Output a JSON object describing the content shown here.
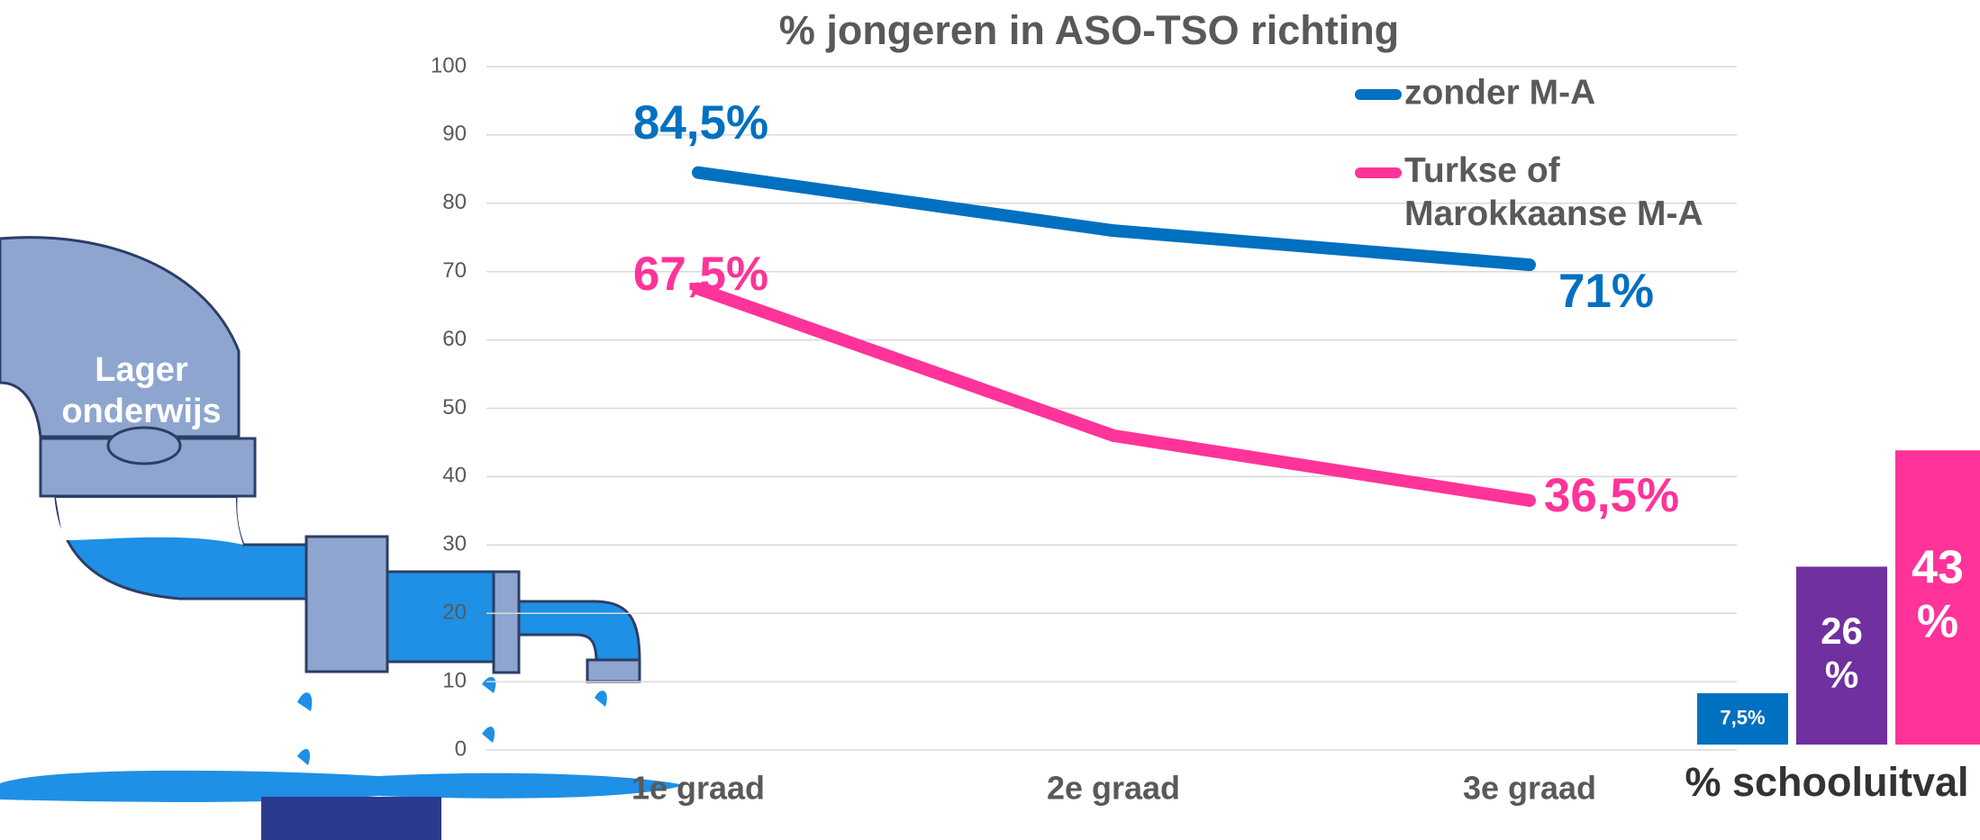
{
  "illustration_label": "Lager onderwijs",
  "chart_data": [
    {
      "type": "line",
      "title": "% jongeren in ASO-TSO richting",
      "categories": [
        "1e graad",
        "2e graad",
        "3e graad"
      ],
      "series": [
        {
          "name": "zonder M-A",
          "color": "#0070c0",
          "values": [
            84.5,
            76,
            71
          ],
          "value_labels": [
            "84,5%",
            null,
            "71%"
          ]
        },
        {
          "name": "Turkse of Marokkaanse M-A",
          "color": "#ff3399",
          "values": [
            67.5,
            46,
            36.5
          ],
          "value_labels": [
            "67,5%",
            null,
            "36,5%"
          ]
        }
      ],
      "ylim": [
        0,
        100
      ],
      "yticks": [
        0,
        10,
        20,
        30,
        40,
        50,
        60,
        70,
        80,
        90,
        100
      ],
      "grid": true,
      "legend": "top-right"
    },
    {
      "type": "bar",
      "title": "% schooluitval",
      "categories": [
        null,
        null,
        null
      ],
      "values": [
        7.5,
        26,
        43
      ],
      "value_labels": [
        "7,5%",
        "26 %",
        "43 %"
      ],
      "colors": [
        "#0070c0",
        "#7030a0",
        "#ff3399"
      ]
    }
  ]
}
